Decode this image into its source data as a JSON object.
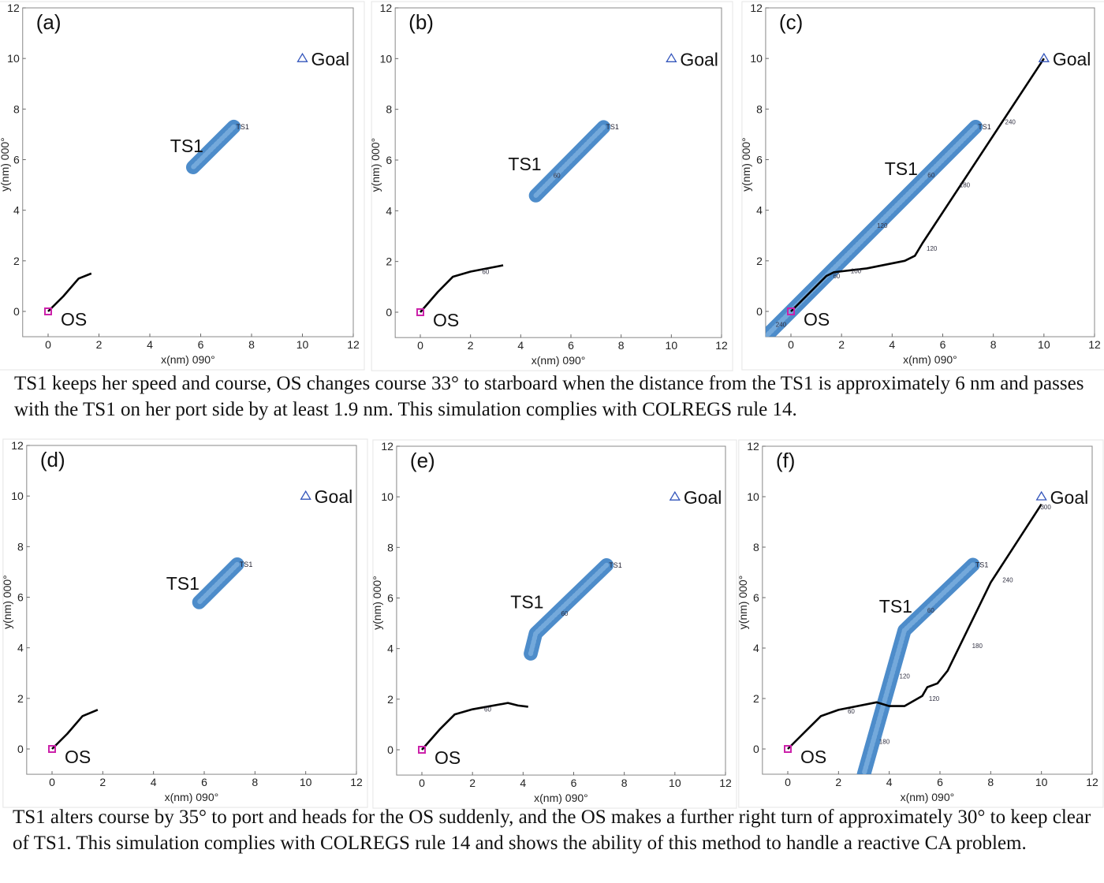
{
  "chart_data": [
    {
      "type": "line",
      "panel_label": "(a)",
      "xlabel": "x(nm) 090°",
      "ylabel": "y(nm) 000°",
      "xlim": [
        -1,
        12
      ],
      "ylim": [
        -1,
        12
      ],
      "xticks": [
        0,
        2,
        4,
        6,
        8,
        10,
        12
      ],
      "yticks": [
        0,
        2,
        4,
        6,
        8,
        10,
        12
      ],
      "grid": false,
      "goal": {
        "label": "Goal",
        "x": 10,
        "y": 10
      },
      "os": {
        "label": "OS",
        "path": [
          [
            0,
            0
          ],
          [
            0.6,
            0.6
          ],
          [
            1.2,
            1.3
          ],
          [
            1.7,
            1.5
          ]
        ],
        "times": []
      },
      "ts1": {
        "label": "TS1",
        "path": [
          [
            7.3,
            7.3
          ],
          [
            5.7,
            5.7
          ]
        ],
        "tag": "TS1",
        "times": []
      }
    },
    {
      "type": "line",
      "panel_label": "(b)",
      "xlabel": "x(nm) 090°",
      "ylabel": "y(nm) 000°",
      "xlim": [
        -1,
        12
      ],
      "ylim": [
        -1,
        12
      ],
      "xticks": [
        0,
        2,
        4,
        6,
        8,
        10,
        12
      ],
      "yticks": [
        0,
        2,
        4,
        6,
        8,
        10,
        12
      ],
      "grid": false,
      "goal": {
        "label": "Goal",
        "x": 10,
        "y": 10
      },
      "os": {
        "label": "OS",
        "path": [
          [
            0,
            0
          ],
          [
            0.7,
            0.8
          ],
          [
            1.3,
            1.4
          ],
          [
            2,
            1.6
          ],
          [
            3.3,
            1.85
          ]
        ],
        "times": [
          {
            "text": "60",
            "x": 2.4,
            "y": 1.6
          }
        ]
      },
      "ts1": {
        "label": "TS1",
        "path": [
          [
            7.3,
            7.3
          ],
          [
            4.6,
            4.6
          ]
        ],
        "tag": "TS1",
        "times": [
          {
            "text": "60",
            "x": 5.3,
            "y": 5.3
          }
        ]
      }
    },
    {
      "type": "line",
      "panel_label": "(c)",
      "xlabel": "x(nm) 090°",
      "ylabel": "y(nm) 000°",
      "xlim": [
        -1,
        12
      ],
      "ylim": [
        -1,
        12
      ],
      "xticks": [
        0,
        2,
        4,
        6,
        8,
        10,
        12
      ],
      "yticks": [
        0,
        2,
        4,
        6,
        8,
        10,
        12
      ],
      "grid": false,
      "goal": {
        "label": "Goal",
        "x": 10,
        "y": 10
      },
      "os": {
        "label": "OS",
        "path": [
          [
            0,
            0
          ],
          [
            0.7,
            0.7
          ],
          [
            1.4,
            1.4
          ],
          [
            1.7,
            1.55
          ],
          [
            3,
            1.7
          ],
          [
            4.5,
            2.0
          ],
          [
            4.9,
            2.2
          ],
          [
            5.2,
            2.7
          ],
          [
            10,
            10
          ]
        ],
        "times": [
          {
            "text": "60",
            "x": 1.6,
            "y": 1.4
          },
          {
            "text": "100",
            "x": 2.3,
            "y": 1.6
          },
          {
            "text": "120",
            "x": 5.3,
            "y": 2.5
          },
          {
            "text": "180",
            "x": 6.6,
            "y": 5
          },
          {
            "text": "240",
            "x": 8.4,
            "y": 7.5
          }
        ]
      },
      "ts1": {
        "label": "TS1",
        "path": [
          [
            7.3,
            7.3
          ],
          [
            -1,
            -1
          ]
        ],
        "tag": "TS1",
        "times": [
          {
            "text": "60",
            "x": 5.4,
            "y": 5.3
          },
          {
            "text": "120",
            "x": 3.4,
            "y": 3.3
          },
          {
            "text": "240",
            "x": -0.6,
            "y": -0.6
          }
        ]
      }
    },
    {
      "type": "line",
      "panel_label": "(d)",
      "xlabel": "x(nm) 090°",
      "ylabel": "y(nm) 000°",
      "xlim": [
        -1,
        12
      ],
      "ylim": [
        -1,
        12
      ],
      "xticks": [
        0,
        2,
        4,
        6,
        8,
        10,
        12
      ],
      "yticks": [
        0,
        2,
        4,
        6,
        8,
        10,
        12
      ],
      "grid": false,
      "goal": {
        "label": "Goal",
        "x": 10,
        "y": 10
      },
      "os": {
        "label": "OS",
        "path": [
          [
            0,
            0
          ],
          [
            0.6,
            0.6
          ],
          [
            1.2,
            1.3
          ],
          [
            1.8,
            1.55
          ]
        ],
        "times": []
      },
      "ts1": {
        "label": "TS1",
        "path": [
          [
            7.3,
            7.3
          ],
          [
            5.8,
            5.8
          ]
        ],
        "tag": "TS1",
        "times": []
      }
    },
    {
      "type": "line",
      "panel_label": "(e)",
      "xlabel": "x(nm) 090°",
      "ylabel": "y(nm) 000°",
      "xlim": [
        -1,
        12
      ],
      "ylim": [
        -1,
        12
      ],
      "xticks": [
        0,
        2,
        4,
        6,
        8,
        10,
        12
      ],
      "yticks": [
        0,
        2,
        4,
        6,
        8,
        10,
        12
      ],
      "grid": false,
      "goal": {
        "label": "Goal",
        "x": 10,
        "y": 10
      },
      "os": {
        "label": "OS",
        "path": [
          [
            0,
            0
          ],
          [
            0.7,
            0.8
          ],
          [
            1.3,
            1.4
          ],
          [
            2,
            1.6
          ],
          [
            3.4,
            1.85
          ],
          [
            3.8,
            1.75
          ],
          [
            4.2,
            1.7
          ]
        ],
        "times": [
          {
            "text": "60",
            "x": 2.4,
            "y": 1.6
          }
        ]
      },
      "ts1": {
        "label": "TS1",
        "path": [
          [
            7.3,
            7.3
          ],
          [
            4.5,
            4.6
          ],
          [
            4.3,
            3.8
          ]
        ],
        "tag": "TS1",
        "times": [
          {
            "text": "60",
            "x": 5.5,
            "y": 5.3
          }
        ]
      }
    },
    {
      "type": "line",
      "panel_label": "(f)",
      "xlabel": "x(nm) 090°",
      "ylabel": "y(nm) 000°",
      "xlim": [
        -1,
        12
      ],
      "ylim": [
        -1,
        12
      ],
      "xticks": [
        0,
        2,
        4,
        6,
        8,
        10,
        12
      ],
      "yticks": [
        0,
        2,
        4,
        6,
        8,
        10,
        12
      ],
      "grid": false,
      "goal": {
        "label": "Goal",
        "x": 10,
        "y": 10
      },
      "os": {
        "label": "OS",
        "path": [
          [
            0,
            0
          ],
          [
            0.7,
            0.7
          ],
          [
            1.3,
            1.3
          ],
          [
            2,
            1.55
          ],
          [
            3.5,
            1.85
          ],
          [
            4,
            1.7
          ],
          [
            4.6,
            1.7
          ],
          [
            5.3,
            2.1
          ],
          [
            5.5,
            2.45
          ],
          [
            5.9,
            2.6
          ],
          [
            6.3,
            3.1
          ],
          [
            8,
            6.6
          ],
          [
            10,
            9.7
          ]
        ],
        "times": [
          {
            "text": "60",
            "x": 2.3,
            "y": 1.5
          },
          {
            "text": "120",
            "x": 5.5,
            "y": 2.0
          },
          {
            "text": "180",
            "x": 7.2,
            "y": 4.1
          },
          {
            "text": "240",
            "x": 8.4,
            "y": 6.7
          },
          {
            "text": "300",
            "x": 9.9,
            "y": 9.6
          }
        ]
      },
      "ts1": {
        "label": "TS1",
        "path": [
          [
            7.3,
            7.3
          ],
          [
            4.6,
            4.7
          ],
          [
            3,
            -1
          ]
        ],
        "tag": "TS1",
        "times": [
          {
            "text": "60",
            "x": 5.5,
            "y": 5.4
          },
          {
            "text": "120",
            "x": 4.4,
            "y": 2.8
          },
          {
            "text": "180",
            "x": 3.6,
            "y": 0.2
          }
        ]
      }
    }
  ],
  "colors": {
    "os_path": "#000000",
    "ts1_band": "#3a7fc4",
    "os_marker": "#cc22aa",
    "goal_marker": "#3355bb"
  },
  "captions": {
    "top": "TS1 keeps her speed and course, OS changes course 33° to starboard when the distance from the TS1 is approximately 6 nm and passes with the TS1 on her port side by at least 1.9 nm. This simulation complies with COLREGS rule 14.",
    "bottom": "TS1 alters course by 35° to port and heads for the OS suddenly, and the OS makes a further right turn of approximately 30° to keep clear of TS1. This simulation complies with COLREGS rule 14 and shows the ability of this method to handle a reactive CA problem."
  }
}
